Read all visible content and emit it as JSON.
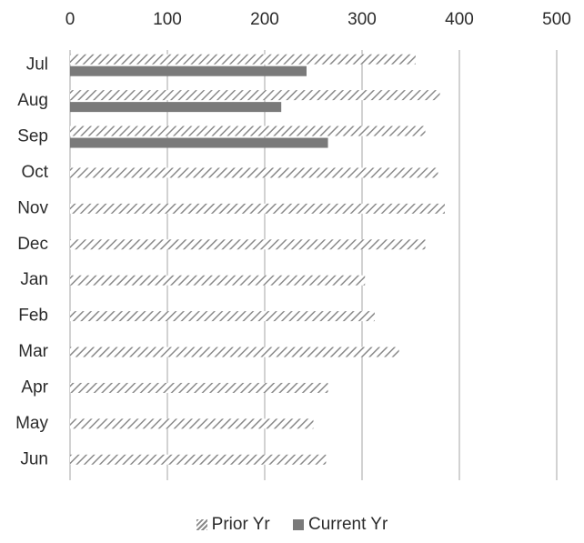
{
  "chart_data": {
    "type": "bar",
    "orientation": "horizontal",
    "categories": [
      "Jul",
      "Aug",
      "Sep",
      "Oct",
      "Nov",
      "Dec",
      "Jan",
      "Feb",
      "Mar",
      "Apr",
      "May",
      "Jun"
    ],
    "series": [
      {
        "name": "Prior Yr",
        "values": [
          355,
          380,
          365,
          378,
          385,
          365,
          303,
          313,
          338,
          265,
          250,
          263
        ],
        "pattern": "hatched",
        "color": "#8a8a8a"
      },
      {
        "name": "Current Yr",
        "values": [
          243,
          217,
          265,
          null,
          null,
          null,
          null,
          null,
          null,
          null,
          null,
          null
        ],
        "pattern": "solid",
        "color": "#7a7a7a"
      }
    ],
    "xlim": [
      0,
      500
    ],
    "xticks": [
      0,
      100,
      200,
      300,
      400,
      500
    ],
    "x_axis_position": "top",
    "grid": "vertical",
    "legend_position": "bottom"
  }
}
